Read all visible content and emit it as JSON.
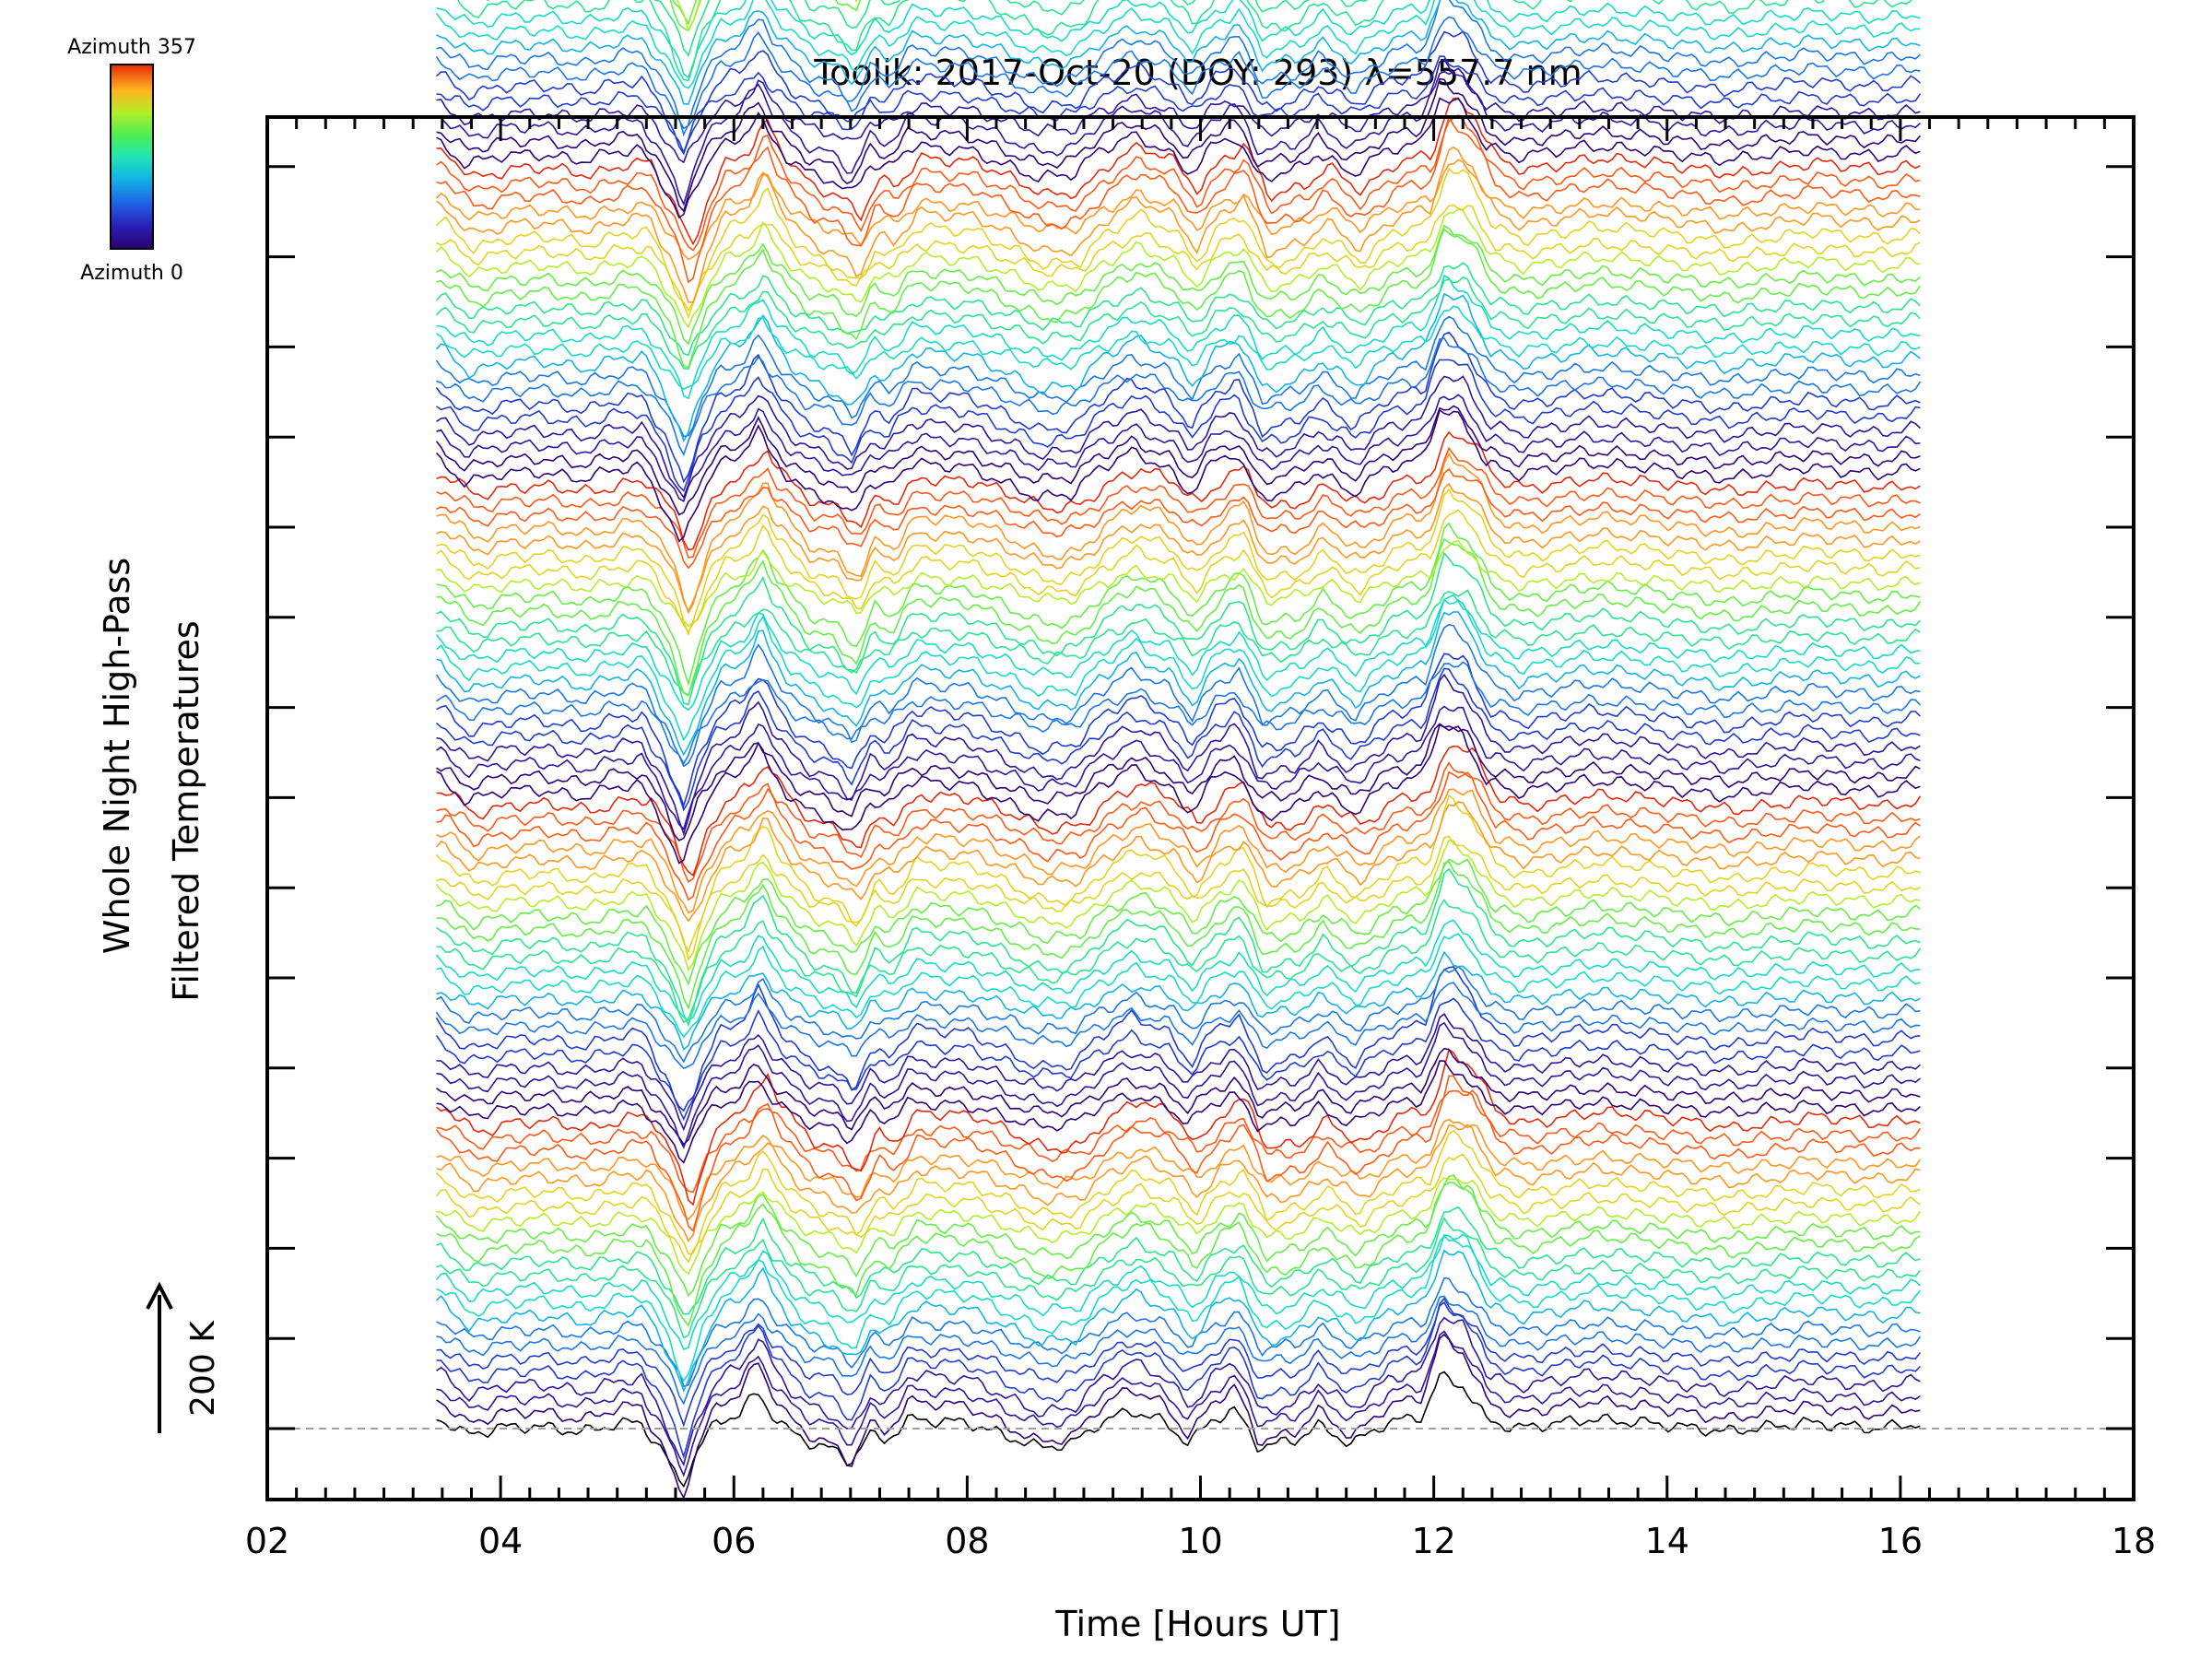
{
  "chart_data": {
    "type": "line",
    "title": "Toolik: 2017-Oct-20 (DOY: 293) λ=557.7 nm",
    "xlabel": "Time [Hours UT]",
    "ylabel_line1": "Whole Night High-Pass",
    "ylabel_line2": "Filtered Temperatures",
    "xlim": [
      2,
      18
    ],
    "x_ticks": [
      "02",
      "04",
      "06",
      "08",
      "10",
      "12",
      "14",
      "16",
      "18"
    ],
    "x_tick_values": [
      2,
      4,
      6,
      8,
      10,
      12,
      14,
      16,
      18
    ],
    "scale_bar_label": "200 K",
    "scale_bar_value_K": 200,
    "data_start_hour": 3.45,
    "data_end_hour": 16.2,
    "trace_count": 115,
    "trace_offset_K": 20,
    "zero_line": "dashed gray at base trace",
    "legend": {
      "top_label": "Azimuth 357",
      "bottom_label": "Azimuth 0",
      "colormap": "rainbow (black/purple → blue → cyan → green → yellow → orange → red)",
      "colors": [
        "#30007a",
        "#3014a0",
        "#1f3cd0",
        "#1a78e6",
        "#10b4e6",
        "#14dcc8",
        "#28e68c",
        "#64ee46",
        "#b4ee28",
        "#e6d21e",
        "#ff961e",
        "#ff5a14",
        "#e6280a"
      ]
    },
    "base_signature_hours": [
      [
        3.45,
        20
      ],
      [
        3.7,
        -10
      ],
      [
        3.85,
        -5
      ],
      [
        4.0,
        2
      ],
      [
        4.3,
        4
      ],
      [
        4.7,
        -6
      ],
      [
        5.0,
        8
      ],
      [
        5.2,
        10
      ],
      [
        5.4,
        -40
      ],
      [
        5.55,
        -95
      ],
      [
        5.7,
        -30
      ],
      [
        5.85,
        10
      ],
      [
        6.05,
        25
      ],
      [
        6.2,
        60
      ],
      [
        6.3,
        30
      ],
      [
        6.45,
        0
      ],
      [
        6.6,
        -20
      ],
      [
        6.8,
        -30
      ],
      [
        7.0,
        -55
      ],
      [
        7.15,
        -10
      ],
      [
        7.3,
        -20
      ],
      [
        7.5,
        15
      ],
      [
        8.0,
        10
      ],
      [
        8.3,
        -10
      ],
      [
        8.6,
        -30
      ],
      [
        8.9,
        -25
      ],
      [
        9.1,
        5
      ],
      [
        9.4,
        30
      ],
      [
        9.7,
        10
      ],
      [
        9.9,
        -25
      ],
      [
        10.1,
        15
      ],
      [
        10.3,
        30
      ],
      [
        10.5,
        -30
      ],
      [
        10.8,
        -20
      ],
      [
        11.0,
        5
      ],
      [
        11.3,
        -25
      ],
      [
        11.6,
        10
      ],
      [
        11.9,
        20
      ],
      [
        12.05,
        85
      ],
      [
        12.25,
        70
      ],
      [
        12.45,
        15
      ],
      [
        12.7,
        0
      ],
      [
        13.3,
        15
      ],
      [
        13.8,
        10
      ],
      [
        14.5,
        -5
      ],
      [
        15.2,
        10
      ],
      [
        15.8,
        0
      ],
      [
        16.2,
        10
      ]
    ]
  }
}
